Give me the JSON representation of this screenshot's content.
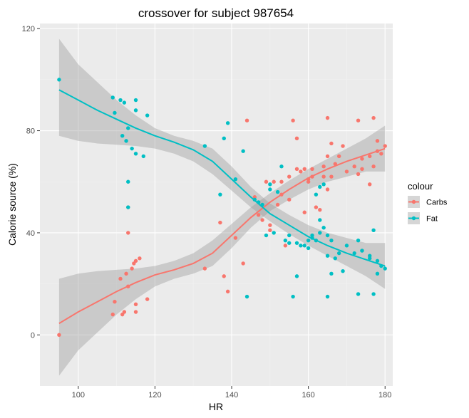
{
  "chart_data": {
    "type": "scatter",
    "title": "crossover for subject 987654",
    "xlabel": "HR",
    "ylabel": "Calorie source (%)",
    "xlim": [
      90,
      182
    ],
    "ylim": [
      -20,
      122
    ],
    "x_ticks": [
      100,
      120,
      140,
      160,
      180
    ],
    "y_ticks": [
      0,
      40,
      80,
      120
    ],
    "grid": true,
    "legend": {
      "title": "colour",
      "position": "right"
    },
    "series": [
      {
        "name": "Carbs",
        "color": "#F8766D",
        "points": [
          [
            95,
            0
          ],
          [
            109,
            8
          ],
          [
            109.5,
            13
          ],
          [
            111,
            22
          ],
          [
            111.5,
            8
          ],
          [
            112,
            9
          ],
          [
            112.5,
            24
          ],
          [
            113,
            50
          ],
          [
            113,
            40
          ],
          [
            113,
            19
          ],
          [
            114,
            26
          ],
          [
            114.5,
            28
          ],
          [
            115,
            12
          ],
          [
            115,
            9
          ],
          [
            115,
            29
          ],
          [
            116,
            30
          ],
          [
            118,
            14
          ],
          [
            133,
            26
          ],
          [
            137,
            44
          ],
          [
            138,
            23
          ],
          [
            139,
            17
          ],
          [
            141,
            38
          ],
          [
            143,
            28
          ],
          [
            144,
            84
          ],
          [
            146,
            54
          ],
          [
            147,
            47
          ],
          [
            148,
            45
          ],
          [
            149,
            60
          ],
          [
            150,
            43
          ],
          [
            150,
            41
          ],
          [
            151,
            60
          ],
          [
            152,
            51
          ],
          [
            153,
            55
          ],
          [
            153,
            60
          ],
          [
            154,
            35
          ],
          [
            155,
            62
          ],
          [
            155,
            53
          ],
          [
            156,
            84
          ],
          [
            157,
            65
          ],
          [
            157,
            77
          ],
          [
            158,
            64
          ],
          [
            159,
            65
          ],
          [
            159,
            48
          ],
          [
            160,
            61
          ],
          [
            160,
            60
          ],
          [
            161,
            62
          ],
          [
            161,
            65
          ],
          [
            162,
            50
          ],
          [
            163,
            49
          ],
          [
            164,
            62
          ],
          [
            164,
            66
          ],
          [
            165,
            85
          ],
          [
            165,
            70
          ],
          [
            165,
            57
          ],
          [
            166,
            62
          ],
          [
            166,
            75
          ],
          [
            167,
            67
          ],
          [
            168,
            70
          ],
          [
            169,
            74
          ],
          [
            170,
            64
          ],
          [
            172,
            66
          ],
          [
            173,
            84
          ],
          [
            173,
            63
          ],
          [
            174,
            65
          ],
          [
            174,
            69
          ],
          [
            176,
            70
          ],
          [
            176,
            59
          ],
          [
            177,
            85
          ],
          [
            177,
            66
          ],
          [
            178,
            76
          ],
          [
            178,
            72
          ],
          [
            179,
            71
          ],
          [
            180,
            74
          ]
        ],
        "fit": [
          [
            95,
            4.5
          ],
          [
            100,
            9
          ],
          [
            105,
            13
          ],
          [
            110,
            17
          ],
          [
            115,
            20.5
          ],
          [
            120,
            23.5
          ],
          [
            125,
            25.5
          ],
          [
            130,
            28
          ],
          [
            135,
            32
          ],
          [
            140,
            39
          ],
          [
            145,
            46
          ],
          [
            150,
            52
          ],
          [
            155,
            57
          ],
          [
            160,
            61.5
          ],
          [
            165,
            65
          ],
          [
            170,
            68
          ],
          [
            175,
            70.5
          ],
          [
            180,
            73
          ]
        ],
        "ci_upper": [
          [
            95,
            22
          ],
          [
            100,
            24
          ],
          [
            105,
            25
          ],
          [
            110,
            25.5
          ],
          [
            115,
            26
          ],
          [
            120,
            27
          ],
          [
            125,
            29
          ],
          [
            130,
            32
          ],
          [
            135,
            37
          ],
          [
            140,
            43.5
          ],
          [
            145,
            50
          ],
          [
            150,
            55.5
          ],
          [
            155,
            60.5
          ],
          [
            160,
            65
          ],
          [
            165,
            69
          ],
          [
            170,
            73
          ],
          [
            175,
            77
          ],
          [
            180,
            82
          ]
        ],
        "ci_lower": [
          [
            95,
            -16
          ],
          [
            100,
            -6
          ],
          [
            105,
            1
          ],
          [
            110,
            8
          ],
          [
            115,
            14
          ],
          [
            120,
            19
          ],
          [
            125,
            22
          ],
          [
            130,
            24
          ],
          [
            135,
            27
          ],
          [
            140,
            34
          ],
          [
            145,
            42
          ],
          [
            150,
            48.5
          ],
          [
            155,
            53
          ],
          [
            160,
            57
          ],
          [
            165,
            60
          ],
          [
            170,
            62
          ],
          [
            175,
            64
          ],
          [
            180,
            64
          ]
        ]
      },
      {
        "name": "Fat",
        "color": "#00BFC4",
        "points": [
          [
            95,
            100
          ],
          [
            109,
            93
          ],
          [
            109.5,
            87
          ],
          [
            111,
            92
          ],
          [
            111.5,
            78
          ],
          [
            112,
            91
          ],
          [
            112.5,
            76
          ],
          [
            113,
            81
          ],
          [
            113,
            60
          ],
          [
            113,
            50
          ],
          [
            114,
            73
          ],
          [
            115,
            92
          ],
          [
            115,
            88
          ],
          [
            115,
            71
          ],
          [
            117,
            70
          ],
          [
            118,
            86
          ],
          [
            133,
            74
          ],
          [
            137,
            55
          ],
          [
            138,
            77
          ],
          [
            139,
            83
          ],
          [
            141,
            61
          ],
          [
            143,
            72
          ],
          [
            144,
            15
          ],
          [
            146,
            53
          ],
          [
            147,
            52
          ],
          [
            148,
            51
          ],
          [
            149,
            39
          ],
          [
            150,
            57
          ],
          [
            150,
            59
          ],
          [
            151,
            40
          ],
          [
            152,
            56
          ],
          [
            153,
            66
          ],
          [
            154,
            37
          ],
          [
            155,
            39
          ],
          [
            155,
            36
          ],
          [
            156,
            15
          ],
          [
            157,
            23
          ],
          [
            157,
            36
          ],
          [
            158,
            35
          ],
          [
            159,
            35
          ],
          [
            160,
            37
          ],
          [
            160,
            34
          ],
          [
            161,
            39
          ],
          [
            161,
            38
          ],
          [
            162,
            37
          ],
          [
            162,
            55
          ],
          [
            163,
            58
          ],
          [
            163,
            45
          ],
          [
            163,
            40
          ],
          [
            164,
            59
          ],
          [
            164,
            42
          ],
          [
            165,
            15
          ],
          [
            165,
            31
          ],
          [
            165,
            39
          ],
          [
            166,
            37
          ],
          [
            166,
            24
          ],
          [
            167,
            30
          ],
          [
            168,
            32
          ],
          [
            169,
            25
          ],
          [
            170,
            35
          ],
          [
            172,
            32
          ],
          [
            173,
            16
          ],
          [
            173,
            37
          ],
          [
            174,
            33
          ],
          [
            174,
            33
          ],
          [
            176,
            30
          ],
          [
            176,
            31
          ],
          [
            177,
            16
          ],
          [
            177,
            41
          ],
          [
            178,
            24
          ],
          [
            178,
            29
          ],
          [
            179,
            27
          ],
          [
            180,
            26
          ]
        ],
        "fit": [
          [
            95,
            96
          ],
          [
            100,
            92
          ],
          [
            105,
            88
          ],
          [
            110,
            84.5
          ],
          [
            115,
            81
          ],
          [
            120,
            78
          ],
          [
            125,
            75.5
          ],
          [
            130,
            72.5
          ],
          [
            135,
            68
          ],
          [
            140,
            61
          ],
          [
            145,
            54
          ],
          [
            150,
            47.5
          ],
          [
            155,
            43
          ],
          [
            160,
            38.5
          ],
          [
            165,
            35
          ],
          [
            170,
            32
          ],
          [
            175,
            29.5
          ],
          [
            180,
            27
          ]
        ],
        "ci_upper": [
          [
            95,
            116
          ],
          [
            100,
            106
          ],
          [
            105,
            99
          ],
          [
            110,
            92
          ],
          [
            115,
            86
          ],
          [
            120,
            81
          ],
          [
            125,
            78
          ],
          [
            130,
            76
          ],
          [
            135,
            73
          ],
          [
            140,
            66
          ],
          [
            145,
            58
          ],
          [
            150,
            51.5
          ],
          [
            155,
            47
          ],
          [
            160,
            43
          ],
          [
            165,
            40
          ],
          [
            170,
            38
          ],
          [
            175,
            36
          ],
          [
            180,
            36
          ]
        ],
        "ci_lower": [
          [
            95,
            78
          ],
          [
            100,
            76
          ],
          [
            105,
            75
          ],
          [
            110,
            74.5
          ],
          [
            115,
            74
          ],
          [
            120,
            73
          ],
          [
            125,
            71
          ],
          [
            130,
            68
          ],
          [
            135,
            63
          ],
          [
            140,
            56.5
          ],
          [
            145,
            50
          ],
          [
            150,
            44.5
          ],
          [
            155,
            39.5
          ],
          [
            160,
            35
          ],
          [
            165,
            31
          ],
          [
            170,
            27
          ],
          [
            175,
            23
          ],
          [
            180,
            18
          ]
        ]
      }
    ]
  }
}
